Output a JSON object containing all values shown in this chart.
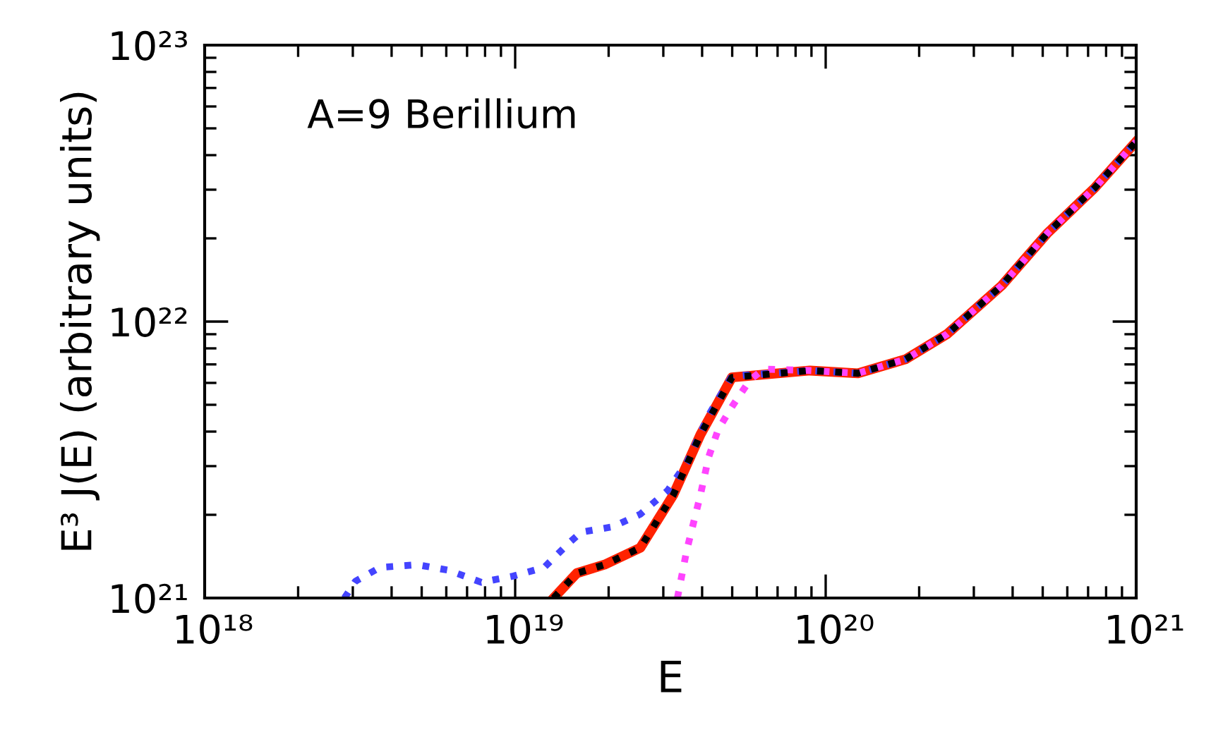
{
  "chart_data": {
    "type": "line",
    "xlabel": "E",
    "ylabel": "E³ J(E) (arbitrary units)",
    "annotations": [
      "A=9 Berillium"
    ],
    "log": "xy",
    "grid": false,
    "marker": "none",
    "xlim": [
      1e+18,
      1e+21
    ],
    "ylim": [
      1e+21,
      1e+23
    ],
    "xticks": [
      {
        "value": 1e+18,
        "label": "10¹⁸"
      },
      {
        "value": 1e+19,
        "label": "10¹⁹"
      },
      {
        "value": 1e+20,
        "label": "10²⁰"
      },
      {
        "value": 1e+21,
        "label": "10²¹"
      }
    ],
    "yticks": [
      {
        "value": 1e+21,
        "label": "10²¹"
      },
      {
        "value": 1e+22,
        "label": "10²²"
      },
      {
        "value": 1e+23,
        "label": "10²³"
      }
    ],
    "series": [
      {
        "color": "#ff2200",
        "line_style": "solid",
        "x": [
          1.33e+19,
          1.58e+19,
          1.94e+19,
          2.53e+19,
          3.23e+19,
          3.95e+19,
          4.99e+19,
          8.9e+19,
          1.27e+20,
          1.81e+20,
          2.46e+20,
          3.69e+20,
          5.16e+20,
          7.36e+20,
          1e+21
        ],
        "values": [
          1e+21,
          1.23e+21,
          1.32e+21,
          1.52e+21,
          2.36e+21,
          3.9e+21,
          6.28e+21,
          6.65e+21,
          6.5e+21,
          7.31e+21,
          9.01e+21,
          1.35e+22,
          2.08e+22,
          3.05e+22,
          4.48e+22
        ]
      },
      {
        "color": "#ff44ff",
        "line_style": "dotted",
        "x": [
          3.33e+19,
          3.57e+19,
          3.95e+19,
          4.2e+19,
          4.51e+19,
          4.99e+19,
          5.7e+19,
          6.31e+19,
          8.9e+19,
          1.27e+20,
          1.81e+20,
          2.46e+20,
          3.69e+20,
          5.16e+20,
          7.36e+20,
          1e+21
        ],
        "values": [
          1e+21,
          1.49e+21,
          2.36e+21,
          3.24e+21,
          4.08e+21,
          4.92e+21,
          6.14e+21,
          6.73e+21,
          6.65e+21,
          6.5e+21,
          7.31e+21,
          9.01e+21,
          1.35e+22,
          2.08e+22,
          3.05e+22,
          4.48e+22
        ]
      },
      {
        "color": "#4444ff",
        "line_style": "dotted",
        "x": [
          2.82e+18,
          3.06e+18,
          3.67e+18,
          4.83e+18,
          6.1e+18,
          7.78e+18,
          9.84e+18,
          1.24e+19,
          1.48e+19,
          1.63e+19,
          2.06e+19,
          2.53e+19,
          3.1e+19,
          3.57e+19,
          4.2e+19,
          4.99e+19,
          8.9e+19,
          1.27e+20,
          1.81e+20,
          2.46e+20,
          3.69e+20,
          5.16e+20,
          7.36e+20,
          1e+21
        ],
        "values": [
          1e+21,
          1.15e+21,
          1.29e+21,
          1.32e+21,
          1.26e+21,
          1.14e+21,
          1.2e+21,
          1.29e+21,
          1.57e+21,
          1.73e+21,
          1.81e+21,
          2.01e+21,
          2.45e+21,
          3.09e+21,
          4.59e+21,
          6.35e+21,
          6.65e+21,
          6.5e+21,
          7.31e+21,
          9.01e+21,
          1.35e+22,
          2.08e+22,
          3.05e+22,
          4.48e+22
        ]
      },
      {
        "color": "#000000",
        "line_style": "dotted",
        "x": [
          1.33e+19,
          1.58e+19,
          1.94e+19,
          2.53e+19,
          3.23e+19,
          3.95e+19,
          4.99e+19,
          8.9e+19,
          1.27e+20,
          1.81e+20,
          2.46e+20,
          3.69e+20,
          5.16e+20,
          7.36e+20,
          1e+21
        ],
        "values": [
          1e+21,
          1.23e+21,
          1.32e+21,
          1.52e+21,
          2.36e+21,
          3.9e+21,
          6.28e+21,
          6.65e+21,
          6.5e+21,
          7.31e+21,
          9.01e+21,
          1.35e+22,
          2.08e+22,
          3.05e+22,
          4.48e+22
        ]
      }
    ]
  }
}
